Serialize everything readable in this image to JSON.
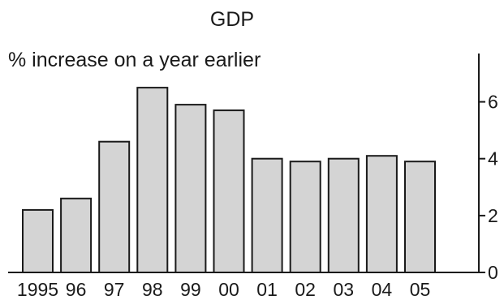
{
  "chart_data": {
    "type": "bar",
    "title": "GDP",
    "subtitle": "% increase on a year earlier",
    "categories": [
      "1995",
      "96",
      "97",
      "98",
      "99",
      "00",
      "01",
      "02",
      "03",
      "04",
      "05"
    ],
    "values": [
      2.2,
      2.6,
      4.6,
      6.5,
      5.9,
      5.7,
      4.0,
      3.9,
      4.0,
      4.1,
      3.9
    ],
    "ylim": [
      0,
      7.7
    ],
    "yticks": [
      0,
      2,
      4,
      6
    ],
    "yaxis_side": "right",
    "grid": false,
    "bar_color": "#d4d4d4",
    "outline_color": "#1a1a1a"
  }
}
